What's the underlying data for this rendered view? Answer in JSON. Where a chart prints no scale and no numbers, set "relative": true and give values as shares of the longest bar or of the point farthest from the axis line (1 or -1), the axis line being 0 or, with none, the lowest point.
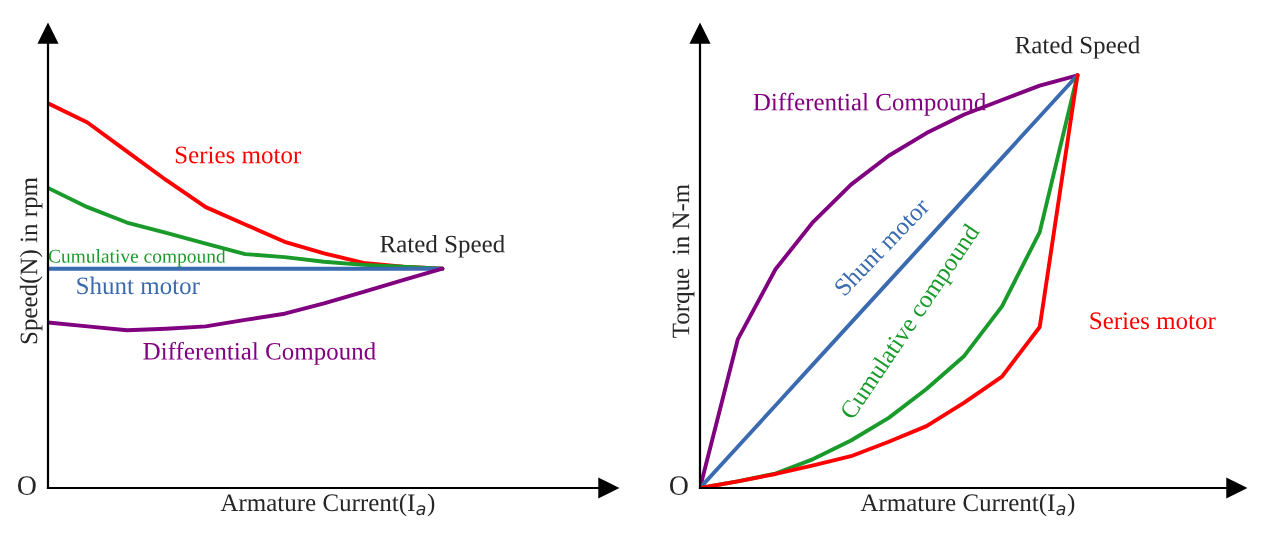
{
  "chart_data": [
    {
      "type": "line",
      "relative": true,
      "xlabel": "Armature Current(I$_{a}$)",
      "ylabel": "Speed(N) in rpm",
      "tick_labels": false,
      "categories": [
        null,
        null,
        null,
        null,
        null,
        null,
        null,
        null,
        null,
        null,
        null
      ],
      "series": [
        {
          "name": "Series motor",
          "color": "#ff0000",
          "values": [
            1.0,
            0.95,
            0.875,
            0.8,
            0.73,
            0.685,
            0.64,
            0.61,
            0.585,
            0.575,
            0.57
          ]
        },
        {
          "name": "Cumulative compound",
          "color": "#1a9a2a",
          "values": [
            0.78,
            0.73,
            0.69,
            0.663,
            0.635,
            0.608,
            0.6,
            0.588,
            0.58,
            0.575,
            0.57
          ]
        },
        {
          "name": "Shunt motor",
          "color": "#3a6ab0",
          "values": [
            0.57,
            0.57,
            0.57,
            0.57,
            0.57,
            0.57,
            0.57,
            0.57,
            0.57,
            0.57,
            0.57
          ]
        },
        {
          "name": "Differential Compound",
          "color": "#800080",
          "values": [
            0.43,
            0.42,
            0.41,
            0.414,
            0.42,
            0.437,
            0.453,
            0.48,
            0.51,
            0.54,
            0.57
          ]
        }
      ],
      "annotations": [
        "Rated Speed",
        "O"
      ]
    },
    {
      "type": "line",
      "relative": true,
      "xlabel": "Armature Current(I$_{a}$)",
      "ylabel": "Torque  in N-m",
      "tick_labels": false,
      "categories": [
        null,
        null,
        null,
        null,
        null,
        null,
        null,
        null,
        null,
        null,
        null
      ],
      "series": [
        {
          "name": "Differential Compound",
          "color": "#800080",
          "values": [
            0,
            0.36,
            0.53,
            0.645,
            0.735,
            0.805,
            0.86,
            0.905,
            0.94,
            0.975,
            1.0
          ]
        },
        {
          "name": "Shunt motor",
          "color": "#3a6ab0",
          "values": [
            0,
            0.1,
            0.2,
            0.3,
            0.4,
            0.5,
            0.6,
            0.7,
            0.8,
            0.9,
            1.0
          ]
        },
        {
          "name": "Cumulative compound",
          "color": "#1a9a2a",
          "values": [
            0,
            0.016,
            0.035,
            0.07,
            0.115,
            0.17,
            0.24,
            0.32,
            0.44,
            0.62,
            1.0
          ]
        },
        {
          "name": "Series motor",
          "color": "#ff0000",
          "values": [
            0,
            0.016,
            0.034,
            0.055,
            0.077,
            0.112,
            0.15,
            0.207,
            0.27,
            0.39,
            1.0
          ]
        }
      ],
      "annotations": [
        "Rated Speed",
        "O"
      ]
    }
  ]
}
